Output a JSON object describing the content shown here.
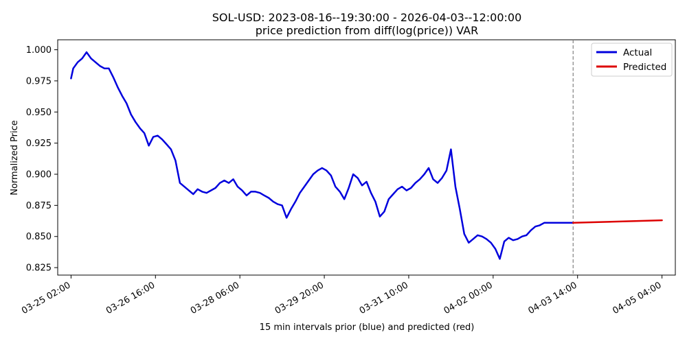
{
  "chart_data": {
    "type": "line",
    "title": "SOL-USD: 2023-08-16--19:30:00 - 2026-04-03--12:00:00",
    "subtitle": "price prediction from diff(log(price)) VAR",
    "xlabel": "15 min intervals prior (blue) and predicted (red)",
    "ylabel": "Normalized Price",
    "x_tick_labels": [
      "03-25 02:00",
      "03-26 16:00",
      "03-28 06:00",
      "03-29 20:00",
      "03-31 10:00",
      "04-02 00:00",
      "04-03 14:00",
      "04-05 04:00"
    ],
    "y_ticks": [
      "0.825",
      "0.850",
      "0.875",
      "0.900",
      "0.925",
      "0.950",
      "0.975",
      "1.000"
    ],
    "ylim": [
      0.819,
      1.008
    ],
    "xlim": [
      "03-24 20:00",
      "04-05 10:00"
    ],
    "grid": false,
    "legend_position": "top-right",
    "forecast_start": "04-03 12:00",
    "colors": {
      "actual": "#0000dd",
      "predicted": "#dd0000",
      "divider": "#808080"
    },
    "series": [
      {
        "name": "Actual",
        "x": [
          "03-25 02:00",
          "03-25 03:00",
          "03-25 05:00",
          "03-25 07:00",
          "03-25 09:00",
          "03-25 11:00",
          "03-25 13:00",
          "03-25 15:00",
          "03-25 17:00",
          "03-25 19:00",
          "03-25 21:00",
          "03-25 23:00",
          "03-26 01:00",
          "03-26 03:00",
          "03-26 05:00",
          "03-26 07:00",
          "03-26 09:00",
          "03-26 11:00",
          "03-26 13:00",
          "03-26 15:00",
          "03-26 17:00",
          "03-26 19:00",
          "03-26 21:00",
          "03-26 23:00",
          "03-27 01:00",
          "03-27 03:00",
          "03-27 05:00",
          "03-27 07:00",
          "03-27 09:00",
          "03-27 11:00",
          "03-27 13:00",
          "03-27 15:00",
          "03-27 17:00",
          "03-27 19:00",
          "03-27 21:00",
          "03-27 23:00",
          "03-28 01:00",
          "03-28 03:00",
          "03-28 05:00",
          "03-28 07:00",
          "03-28 09:00",
          "03-28 11:00",
          "03-28 13:00",
          "03-28 15:00",
          "03-28 17:00",
          "03-28 19:00",
          "03-28 21:00",
          "03-28 23:00",
          "03-29 01:00",
          "03-29 03:00",
          "03-29 05:00",
          "03-29 07:00",
          "03-29 09:00",
          "03-29 11:00",
          "03-29 13:00",
          "03-29 15:00",
          "03-29 17:00",
          "03-29 19:00",
          "03-29 21:00",
          "03-29 23:00",
          "03-30 01:00",
          "03-30 03:00",
          "03-30 05:00",
          "03-30 07:00",
          "03-30 09:00",
          "03-30 11:00",
          "03-30 13:00",
          "03-30 15:00",
          "03-30 17:00",
          "03-30 19:00",
          "03-30 21:00",
          "03-30 23:00",
          "03-31 01:00",
          "03-31 03:00",
          "03-31 05:00",
          "03-31 07:00",
          "03-31 09:00",
          "03-31 11:00",
          "03-31 13:00",
          "03-31 15:00",
          "03-31 17:00",
          "03-31 19:00",
          "03-31 21:00",
          "03-31 23:00",
          "04-01 01:00",
          "04-01 03:00",
          "04-01 05:00",
          "04-01 07:00",
          "04-01 09:00",
          "04-01 11:00",
          "04-01 13:00",
          "04-01 15:00",
          "04-01 17:00",
          "04-01 19:00",
          "04-01 21:00",
          "04-01 23:00",
          "04-02 01:00",
          "04-02 03:00",
          "04-02 05:00",
          "04-02 07:00",
          "04-02 09:00",
          "04-02 11:00",
          "04-02 13:00",
          "04-02 15:00",
          "04-02 17:00",
          "04-02 19:00",
          "04-02 21:00",
          "04-02 23:00",
          "04-03 01:00",
          "04-03 03:00",
          "04-03 05:00",
          "04-03 07:00",
          "04-03 09:00",
          "04-03 11:00",
          "04-03 12:00"
        ],
        "values": [
          0.977,
          0.985,
          0.99,
          0.993,
          0.998,
          0.993,
          0.99,
          0.987,
          0.985,
          0.985,
          0.978,
          0.97,
          0.963,
          0.957,
          0.948,
          0.942,
          0.937,
          0.933,
          0.923,
          0.93,
          0.931,
          0.928,
          0.924,
          0.92,
          0.911,
          0.893,
          0.89,
          0.887,
          0.884,
          0.888,
          0.886,
          0.885,
          0.887,
          0.889,
          0.893,
          0.895,
          0.893,
          0.896,
          0.89,
          0.887,
          0.883,
          0.886,
          0.886,
          0.885,
          0.883,
          0.881,
          0.878,
          0.876,
          0.875,
          0.865,
          0.872,
          0.878,
          0.885,
          0.89,
          0.895,
          0.9,
          0.903,
          0.905,
          0.903,
          0.899,
          0.89,
          0.886,
          0.88,
          0.889,
          0.9,
          0.897,
          0.891,
          0.894,
          0.885,
          0.878,
          0.866,
          0.87,
          0.88,
          0.884,
          0.888,
          0.89,
          0.887,
          0.889,
          0.893,
          0.896,
          0.9,
          0.905,
          0.896,
          0.893,
          0.897,
          0.903,
          0.92,
          0.89,
          0.872,
          0.852,
          0.845,
          0.848,
          0.851,
          0.85,
          0.848,
          0.845,
          0.84,
          0.832,
          0.846,
          0.849,
          0.847,
          0.848,
          0.85,
          0.851,
          0.855,
          0.858,
          0.859,
          0.861,
          0.861,
          0.861,
          0.861,
          0.861,
          0.861,
          0.861,
          0.861
        ]
      },
      {
        "name": "Predicted",
        "x": [
          "04-03 12:00",
          "04-05 04:00"
        ],
        "values": [
          0.861,
          0.863
        ]
      }
    ]
  }
}
